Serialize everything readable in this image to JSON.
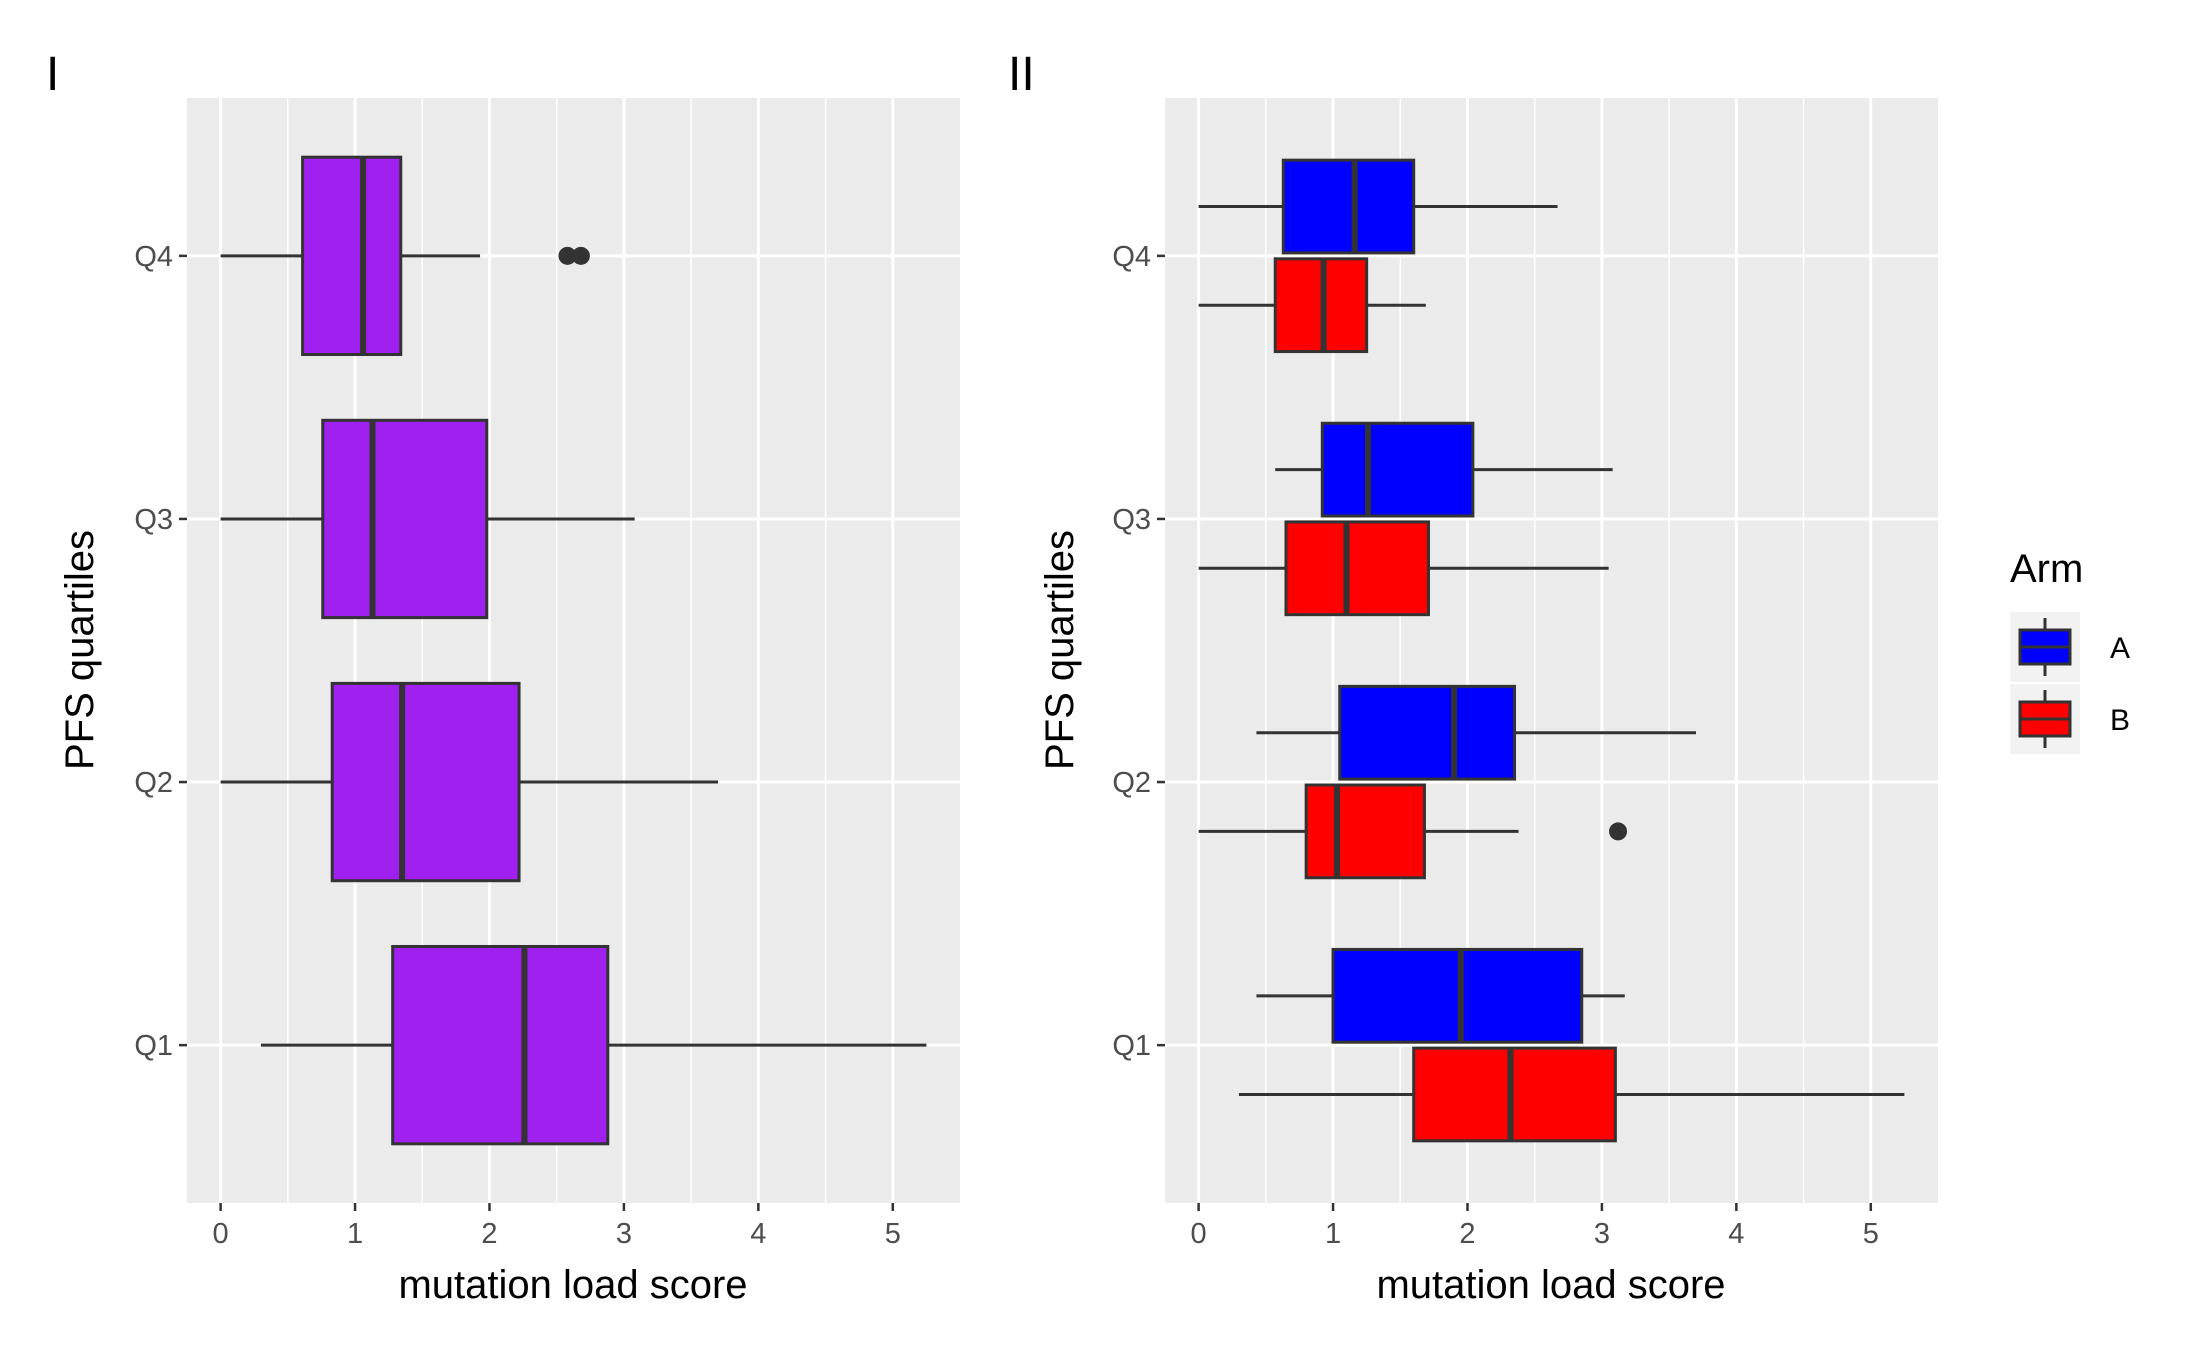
{
  "chart_data": [
    {
      "panel_tag": "I",
      "type": "boxplot",
      "orientation": "horizontal",
      "xlabel": "mutation load score",
      "ylabel": "PFS quartiles",
      "xlim": [
        -0.25,
        5.5
      ],
      "x_ticks": [
        0,
        1,
        2,
        3,
        4,
        5
      ],
      "categories": [
        "Q1",
        "Q2",
        "Q3",
        "Q4"
      ],
      "grid": true,
      "fill_color": "#A020F0",
      "series": [
        {
          "boxes": [
            {
              "category": "Q1",
              "min": 0.3,
              "q1": 1.28,
              "median": 2.26,
              "q3": 2.88,
              "max": 5.25,
              "outliers": []
            },
            {
              "category": "Q2",
              "min": 0.0,
              "q1": 0.83,
              "median": 1.35,
              "q3": 2.22,
              "max": 3.7,
              "outliers": []
            },
            {
              "category": "Q3",
              "min": 0.0,
              "q1": 0.76,
              "median": 1.13,
              "q3": 1.98,
              "max": 3.08,
              "outliers": []
            },
            {
              "category": "Q4",
              "min": 0.0,
              "q1": 0.61,
              "median": 1.06,
              "q3": 1.34,
              "max": 1.93,
              "outliers": [
                2.58,
                2.68
              ]
            }
          ]
        }
      ]
    },
    {
      "panel_tag": "II",
      "type": "boxplot",
      "orientation": "horizontal",
      "xlabel": "mutation load score",
      "ylabel": "PFS quartiles",
      "xlim": [
        -0.25,
        5.5
      ],
      "x_ticks": [
        0,
        1,
        2,
        3,
        4,
        5
      ],
      "categories": [
        "Q1",
        "Q2",
        "Q3",
        "Q4"
      ],
      "grid": true,
      "legend": {
        "title": "Arm",
        "placement": "right"
      },
      "series": [
        {
          "name": "A",
          "color": "#0000FF",
          "boxes": [
            {
              "category": "Q1",
              "min": 0.43,
              "q1": 1.0,
              "median": 1.95,
              "q3": 2.85,
              "max": 3.17,
              "outliers": []
            },
            {
              "category": "Q2",
              "min": 0.43,
              "q1": 1.05,
              "median": 1.9,
              "q3": 2.35,
              "max": 3.7,
              "outliers": []
            },
            {
              "category": "Q3",
              "min": 0.57,
              "q1": 0.92,
              "median": 1.26,
              "q3": 2.04,
              "max": 3.08,
              "outliers": []
            },
            {
              "category": "Q4",
              "min": 0.0,
              "q1": 0.63,
              "median": 1.16,
              "q3": 1.6,
              "max": 2.67,
              "outliers": []
            }
          ]
        },
        {
          "name": "B",
          "color": "#FF0000",
          "boxes": [
            {
              "category": "Q1",
              "min": 0.3,
              "q1": 1.6,
              "median": 2.32,
              "q3": 3.1,
              "max": 5.25,
              "outliers": []
            },
            {
              "category": "Q2",
              "min": 0.0,
              "q1": 0.8,
              "median": 1.03,
              "q3": 1.68,
              "max": 2.38,
              "outliers": [
                3.12
              ]
            },
            {
              "category": "Q3",
              "min": 0.0,
              "q1": 0.65,
              "median": 1.1,
              "q3": 1.71,
              "max": 3.05,
              "outliers": []
            },
            {
              "category": "Q4",
              "min": 0.0,
              "q1": 0.57,
              "median": 0.93,
              "q3": 1.25,
              "max": 1.69,
              "outliers": []
            }
          ]
        }
      ]
    }
  ]
}
